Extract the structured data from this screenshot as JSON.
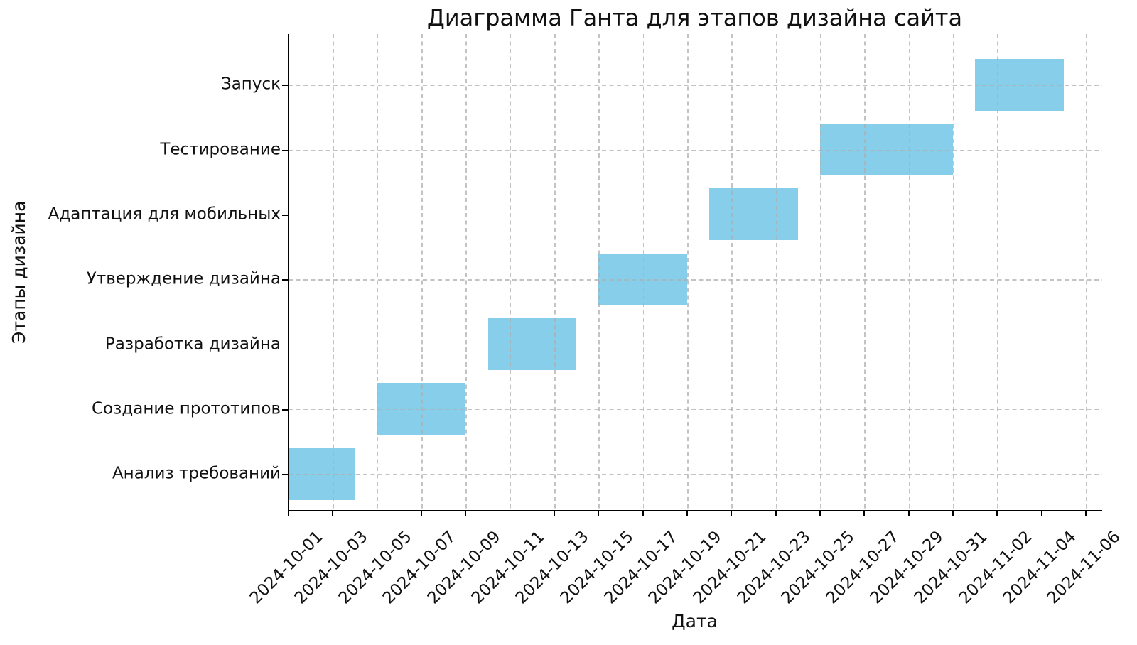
{
  "chart_data": {
    "type": "bar",
    "subtype": "gantt-horizontal",
    "title": "Диаграмма Ганта для этапов дизайна сайта",
    "xlabel": "Дата",
    "ylabel": "Этапы дизайна",
    "bar_color": "#87CEEB",
    "grid": {
      "visible": true,
      "style": "dashed",
      "color": "#c9c9c9",
      "axes": "both",
      "drawn_over_bars": true
    },
    "legend_position": "none",
    "x_axis": {
      "start": "2024-10-01",
      "end": "2024-11-06",
      "tick_interval_days": 2,
      "tick_rotation_deg": 45,
      "ticks": [
        "2024-10-01",
        "2024-10-03",
        "2024-10-05",
        "2024-10-07",
        "2024-10-09",
        "2024-10-11",
        "2024-10-13",
        "2024-10-15",
        "2024-10-17",
        "2024-10-19",
        "2024-10-21",
        "2024-10-23",
        "2024-10-25",
        "2024-10-27",
        "2024-10-29",
        "2024-10-31",
        "2024-11-02",
        "2024-11-04",
        "2024-11-06"
      ]
    },
    "y_categories_top_to_bottom": [
      "Запуск",
      "Тестирование",
      "Адаптация для мобильных",
      "Утверждение дизайна",
      "Разработка дизайна",
      "Создание прототипов",
      "Анализ требований"
    ],
    "tasks": [
      {
        "label": "Анализ требований",
        "start": "2024-10-01",
        "end": "2024-10-04",
        "duration_days": 3
      },
      {
        "label": "Создание прототипов",
        "start": "2024-10-05",
        "end": "2024-10-09",
        "duration_days": 4
      },
      {
        "label": "Разработка дизайна",
        "start": "2024-10-10",
        "end": "2024-10-14",
        "duration_days": 4
      },
      {
        "label": "Утверждение дизайна",
        "start": "2024-10-15",
        "end": "2024-10-19",
        "duration_days": 4
      },
      {
        "label": "Адаптация для мобильных",
        "start": "2024-10-20",
        "end": "2024-10-24",
        "duration_days": 4
      },
      {
        "label": "Тестирование",
        "start": "2024-10-25",
        "end": "2024-10-31",
        "duration_days": 6
      },
      {
        "label": "Запуск",
        "start": "2024-11-01",
        "end": "2024-11-05",
        "duration_days": 4
      }
    ]
  }
}
